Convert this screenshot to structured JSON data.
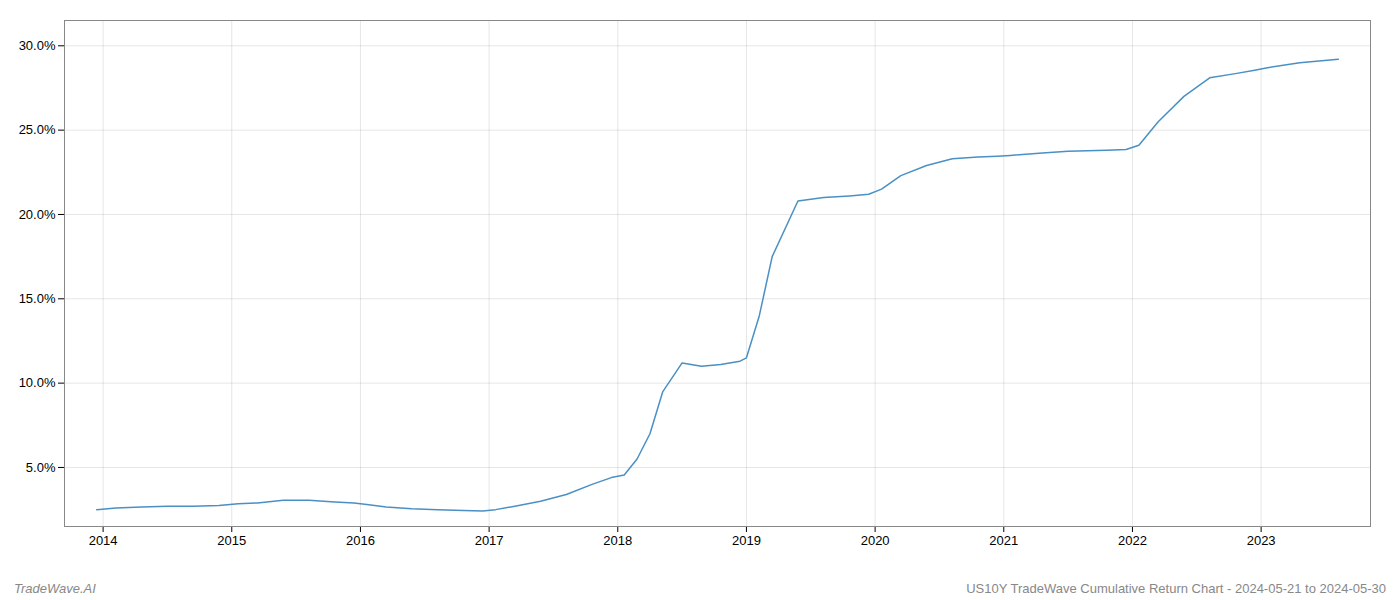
{
  "chart_data": {
    "type": "line",
    "title": "US10Y TradeWave Cumulative Return Chart - 2024-05-21 to 2024-05-30",
    "annotations": [
      "TradeWave.AI"
    ],
    "color": "#4a90c4",
    "x": [
      2013.95,
      2014.1,
      2014.3,
      2014.5,
      2014.7,
      2014.9,
      2015.05,
      2015.2,
      2015.4,
      2015.6,
      2015.8,
      2015.95,
      2016.05,
      2016.2,
      2016.4,
      2016.6,
      2016.8,
      2016.95,
      2017.05,
      2017.2,
      2017.4,
      2017.6,
      2017.8,
      2017.95,
      2018.05,
      2018.15,
      2018.25,
      2018.35,
      2018.5,
      2018.65,
      2018.8,
      2018.95,
      2019.0,
      2019.1,
      2019.2,
      2019.4,
      2019.6,
      2019.8,
      2019.95,
      2020.05,
      2020.2,
      2020.4,
      2020.6,
      2020.8,
      2020.95,
      2021.05,
      2021.3,
      2021.5,
      2021.8,
      2021.95,
      2022.05,
      2022.2,
      2022.4,
      2022.6,
      2022.8,
      2022.95,
      2023.05,
      2023.3,
      2023.6
    ],
    "values": [
      2.5,
      2.6,
      2.65,
      2.7,
      2.7,
      2.75,
      2.85,
      2.9,
      3.05,
      3.05,
      2.95,
      2.9,
      2.8,
      2.65,
      2.55,
      2.5,
      2.45,
      2.42,
      2.5,
      2.7,
      3.0,
      3.4,
      4.0,
      4.4,
      4.55,
      5.5,
      7.0,
      9.5,
      11.2,
      11.0,
      11.1,
      11.3,
      11.5,
      14.0,
      17.5,
      20.8,
      21.0,
      21.1,
      21.2,
      21.5,
      22.3,
      22.9,
      23.3,
      23.4,
      23.45,
      23.5,
      23.65,
      23.75,
      23.8,
      23.85,
      24.1,
      25.5,
      27.0,
      28.1,
      28.35,
      28.55,
      28.7,
      29.0,
      29.2
    ],
    "xlim": [
      2013.7,
      2023.85
    ],
    "xticks": [
      2014,
      2015,
      2016,
      2017,
      2018,
      2019,
      2020,
      2021,
      2022,
      2023
    ],
    "ylim": [
      1.5,
      31.5
    ],
    "yticks": [
      {
        "value": 5.0,
        "label": "5.0%"
      },
      {
        "value": 10.0,
        "label": "10.0%"
      },
      {
        "value": 15.0,
        "label": "15.0%"
      },
      {
        "value": 20.0,
        "label": "20.0%"
      },
      {
        "value": 25.0,
        "label": "25.0%"
      },
      {
        "value": 30.0,
        "label": "30.0%"
      }
    ],
    "grid": true
  }
}
